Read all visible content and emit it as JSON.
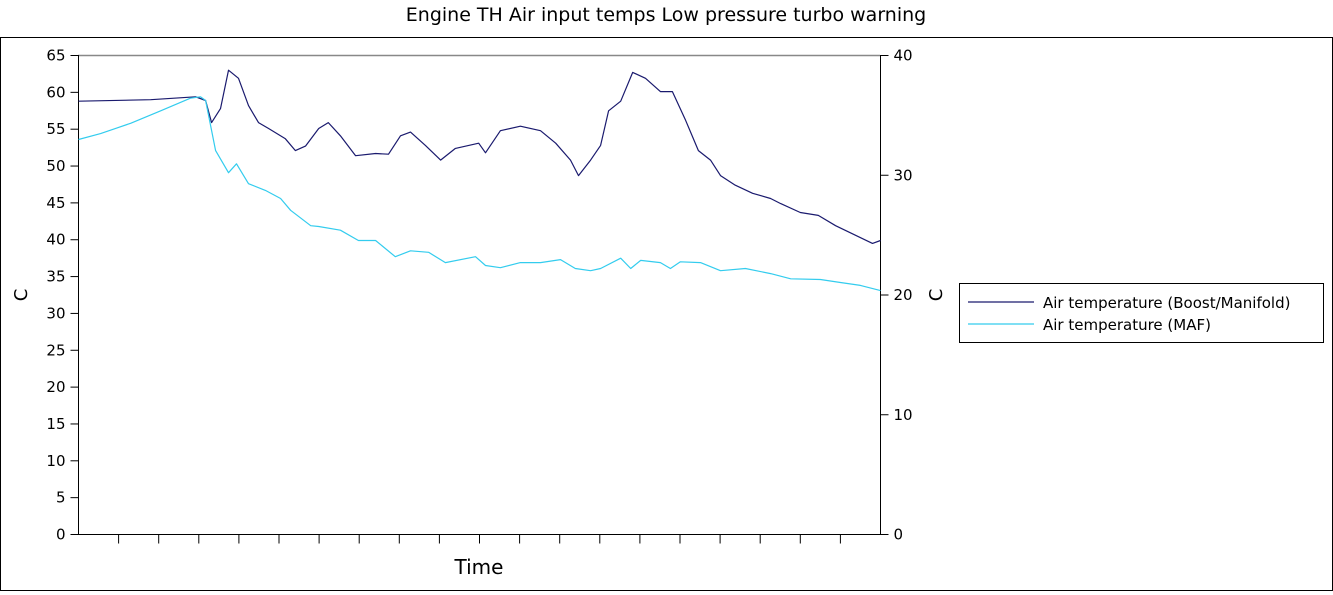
{
  "chart_data": {
    "type": "line",
    "title": "Engine TH  Air input temps Low pressure turbo warning",
    "xlabel": "Time",
    "ylabel": "C",
    "ylabel_right": "C",
    "ylim": [
      0,
      65
    ],
    "ylim_right": [
      0,
      40
    ],
    "yticks": [
      0,
      5,
      10,
      15,
      20,
      25,
      30,
      35,
      40,
      45,
      50,
      55,
      60,
      65
    ],
    "yticks_right": [
      0,
      10,
      20,
      30,
      40
    ],
    "x_tick_count": 20,
    "x_tick_labels": [],
    "grid": false,
    "legend_position": "right",
    "series": [
      {
        "name": "Air temperature (Boost/Manifold)",
        "color": "#1a1a6e",
        "x": [
          0,
          1.8,
          2.92,
          3.17,
          3.32,
          3.54,
          3.74,
          3.99,
          4.24,
          4.49,
          4.74,
          5.16,
          5.41,
          5.66,
          5.99,
          6.23,
          6.53,
          6.91,
          7.41,
          7.73,
          8.03,
          8.28,
          8.65,
          9.03,
          9.4,
          9.98,
          10.15,
          10.52,
          11.02,
          11.52,
          11.9,
          12.27,
          12.47,
          12.77,
          13.02,
          13.22,
          13.52,
          13.82,
          14.14,
          14.51,
          14.81,
          15.14,
          15.46,
          15.76,
          16.01,
          16.38,
          16.81,
          17.26,
          17.51,
          18.0,
          18.45,
          18.88,
          19.38,
          19.8,
          20
        ],
        "values": [
          58.8,
          59.0,
          59.4,
          58.9,
          55.9,
          57.8,
          63.0,
          61.9,
          58.2,
          55.9,
          55.1,
          53.7,
          52.1,
          52.7,
          55.1,
          55.9,
          54.1,
          51.4,
          51.7,
          51.6,
          54.1,
          54.6,
          52.8,
          50.8,
          52.4,
          53.1,
          51.8,
          54.8,
          55.4,
          54.8,
          53.1,
          50.8,
          48.7,
          50.8,
          52.8,
          57.5,
          58.8,
          62.7,
          61.9,
          60.1,
          60.1,
          56.2,
          52.1,
          50.8,
          48.7,
          47.4,
          46.3,
          45.6,
          44.9,
          43.7,
          43.3,
          41.9,
          40.6,
          39.5,
          39.9
        ]
      },
      {
        "name": "Air temperature (MAF)",
        "color": "#33ccee",
        "x": [
          0,
          0.55,
          1.3,
          2.05,
          2.79,
          3.04,
          3.17,
          3.42,
          3.74,
          3.94,
          4.24,
          4.66,
          5.04,
          5.29,
          5.79,
          5.99,
          6.53,
          6.98,
          7.41,
          7.9,
          8.28,
          8.73,
          9.15,
          9.9,
          10.15,
          10.52,
          11.02,
          11.52,
          12.02,
          12.39,
          12.77,
          13.02,
          13.52,
          13.77,
          14.02,
          14.51,
          14.76,
          15.01,
          15.51,
          16.01,
          16.63,
          17.26,
          17.76,
          18.5,
          19.0,
          19.5,
          20
        ],
        "values": [
          53.6,
          54.4,
          55.8,
          57.5,
          59.2,
          59.4,
          58.9,
          52.1,
          49.1,
          50.3,
          47.6,
          46.7,
          45.6,
          44.0,
          41.9,
          41.8,
          41.3,
          39.9,
          39.9,
          37.7,
          38.5,
          38.3,
          36.9,
          37.7,
          36.5,
          36.2,
          36.9,
          36.9,
          37.3,
          36.1,
          35.8,
          36.1,
          37.5,
          36.1,
          37.2,
          36.9,
          36.1,
          37.0,
          36.9,
          35.8,
          36.1,
          35.4,
          34.7,
          34.6,
          34.2,
          33.8,
          33.1
        ]
      }
    ]
  }
}
